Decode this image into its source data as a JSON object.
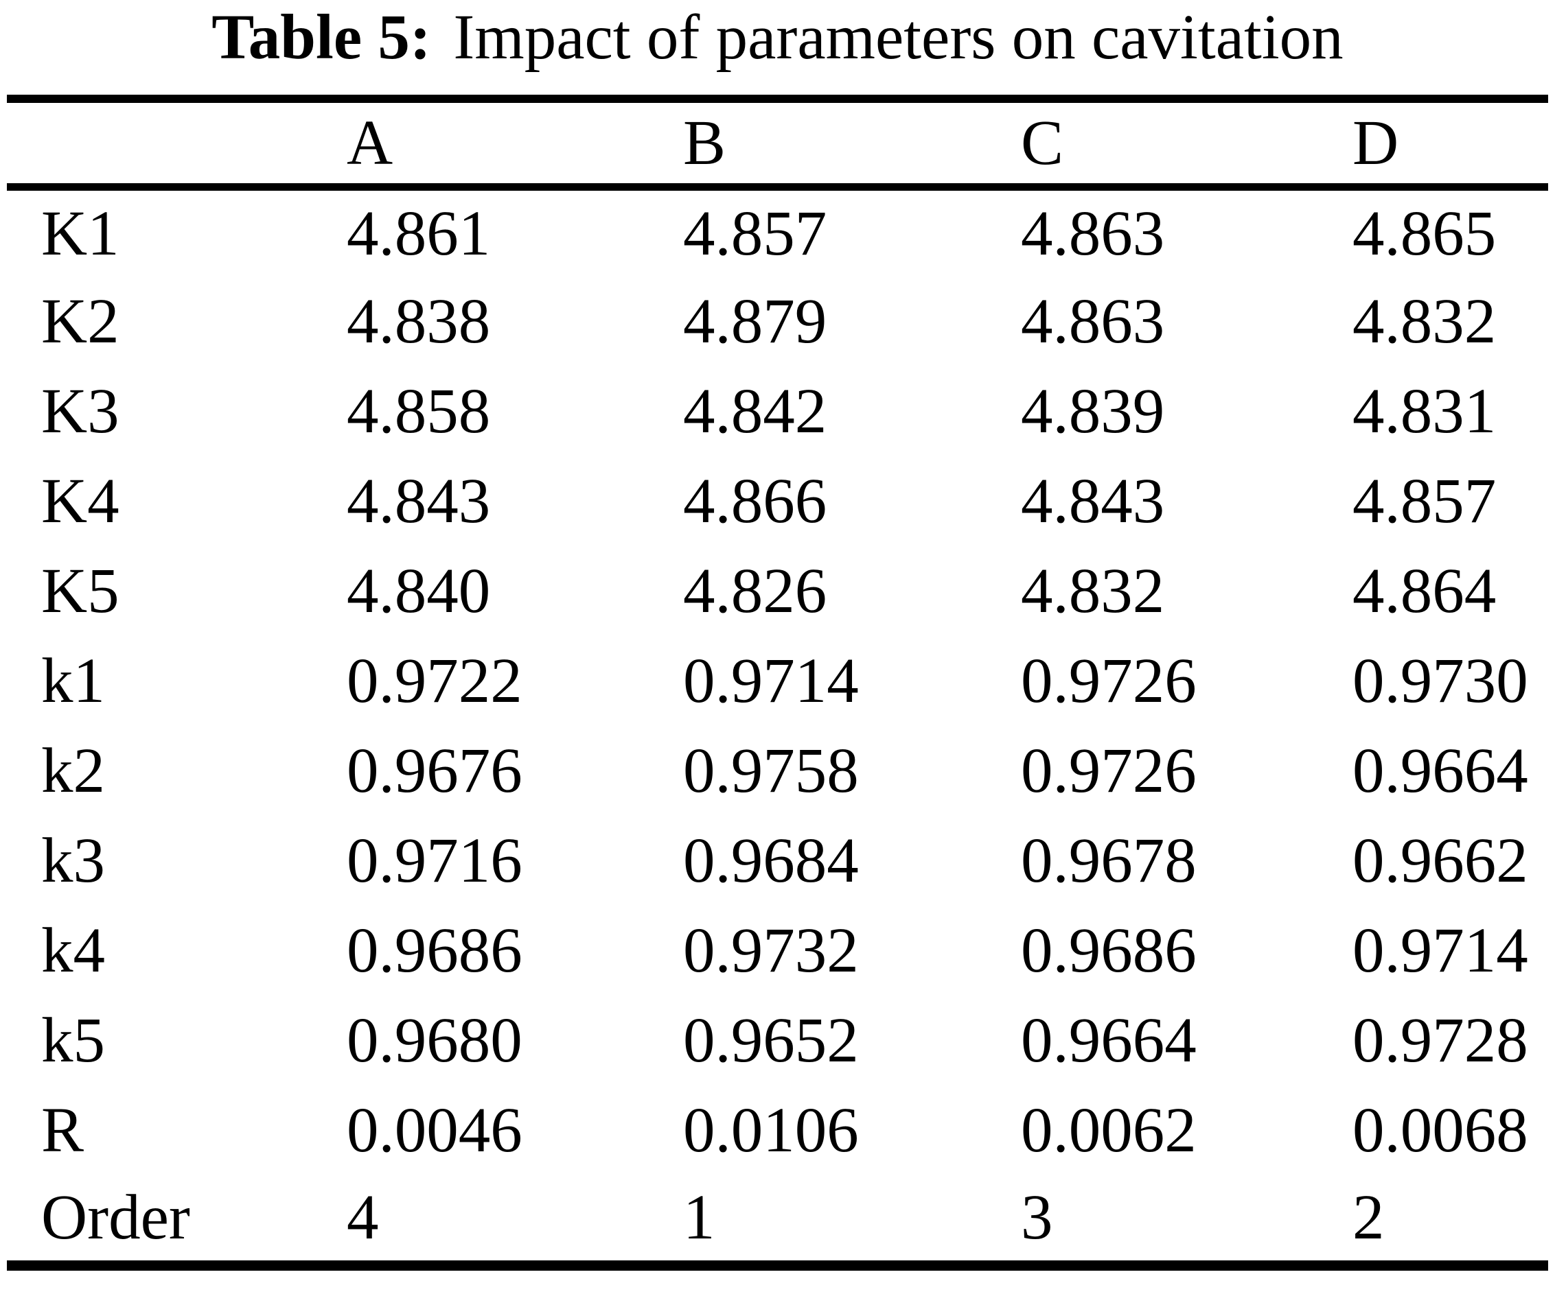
{
  "caption": {
    "label": "Table 5:",
    "text": "Impact of parameters on cavitation"
  },
  "table": {
    "headers": [
      "A",
      "B",
      "C",
      "D"
    ],
    "rows": [
      {
        "label": "K1",
        "values": [
          "4.861",
          "4.857",
          "4.863",
          "4.865"
        ]
      },
      {
        "label": "K2",
        "values": [
          "4.838",
          "4.879",
          "4.863",
          "4.832"
        ]
      },
      {
        "label": "K3",
        "values": [
          "4.858",
          "4.842",
          "4.839",
          "4.831"
        ]
      },
      {
        "label": "K4",
        "values": [
          "4.843",
          "4.866",
          "4.843",
          "4.857"
        ]
      },
      {
        "label": "K5",
        "values": [
          "4.840",
          "4.826",
          "4.832",
          "4.864"
        ]
      },
      {
        "label": "k1",
        "values": [
          "0.9722",
          "0.9714",
          "0.9726",
          "0.9730"
        ]
      },
      {
        "label": "k2",
        "values": [
          "0.9676",
          "0.9758",
          "0.9726",
          "0.9664"
        ]
      },
      {
        "label": "k3",
        "values": [
          "0.9716",
          "0.9684",
          "0.9678",
          "0.9662"
        ]
      },
      {
        "label": "k4",
        "values": [
          "0.9686",
          "0.9732",
          "0.9686",
          "0.9714"
        ]
      },
      {
        "label": "k5",
        "values": [
          "0.9680",
          "0.9652",
          "0.9664",
          "0.9728"
        ]
      },
      {
        "label": "R",
        "values": [
          "0.0046",
          "0.0106",
          "0.0062",
          "0.0068"
        ]
      },
      {
        "label": "Order",
        "values": [
          "4",
          "1",
          "3",
          "2"
        ]
      }
    ]
  },
  "colors": {
    "text": "#000000",
    "background": "#ffffff",
    "rule": "#000000"
  }
}
